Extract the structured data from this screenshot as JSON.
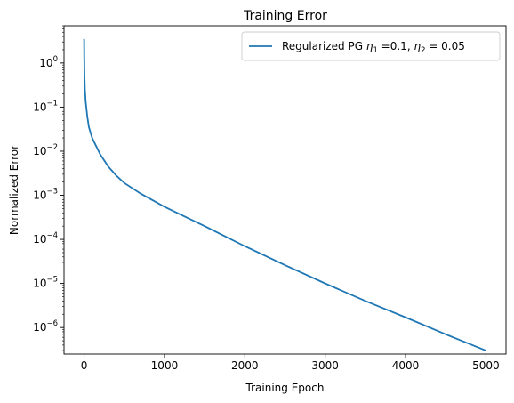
{
  "chart_data": {
    "type": "line",
    "title": "Training Error",
    "xlabel": "Training Epoch",
    "ylabel": "Normalized Error",
    "xlim": [
      -250,
      5250
    ],
    "ylim": [
      2.5e-07,
      7.0
    ],
    "yscale": "log",
    "x_ticks": [
      0,
      1000,
      2000,
      3000,
      4000,
      5000
    ],
    "x_tick_labels": [
      "0",
      "1000",
      "2000",
      "3000",
      "4000",
      "5000"
    ],
    "y_ticks_exponents": [
      0,
      -1,
      -2,
      -3,
      -4,
      -5,
      -6
    ],
    "grid": false,
    "legend_position": "top-right",
    "series": [
      {
        "name": "Regularized PG η1 =0.1, η2 = 0.05",
        "color": "#1f77b4",
        "x": [
          0,
          2,
          5,
          10,
          20,
          40,
          60,
          100,
          150,
          200,
          300,
          400,
          500,
          700,
          1000,
          1500,
          2000,
          2500,
          3000,
          3500,
          4000,
          4500,
          5000
        ],
        "y": [
          3.5,
          1.2,
          0.5,
          0.25,
          0.13,
          0.06,
          0.035,
          0.02,
          0.013,
          0.0085,
          0.0045,
          0.0028,
          0.0019,
          0.0011,
          0.00055,
          0.0002,
          7e-05,
          2.6e-05,
          1e-05,
          4e-06,
          1.7e-06,
          7e-07,
          3e-07
        ]
      }
    ],
    "legend": {
      "prefix": "Regularized PG ",
      "eta": "η",
      "sub1": "1",
      "mid": " =0.1, ",
      "sub2": "2",
      "suffix": " = 0.05"
    }
  }
}
